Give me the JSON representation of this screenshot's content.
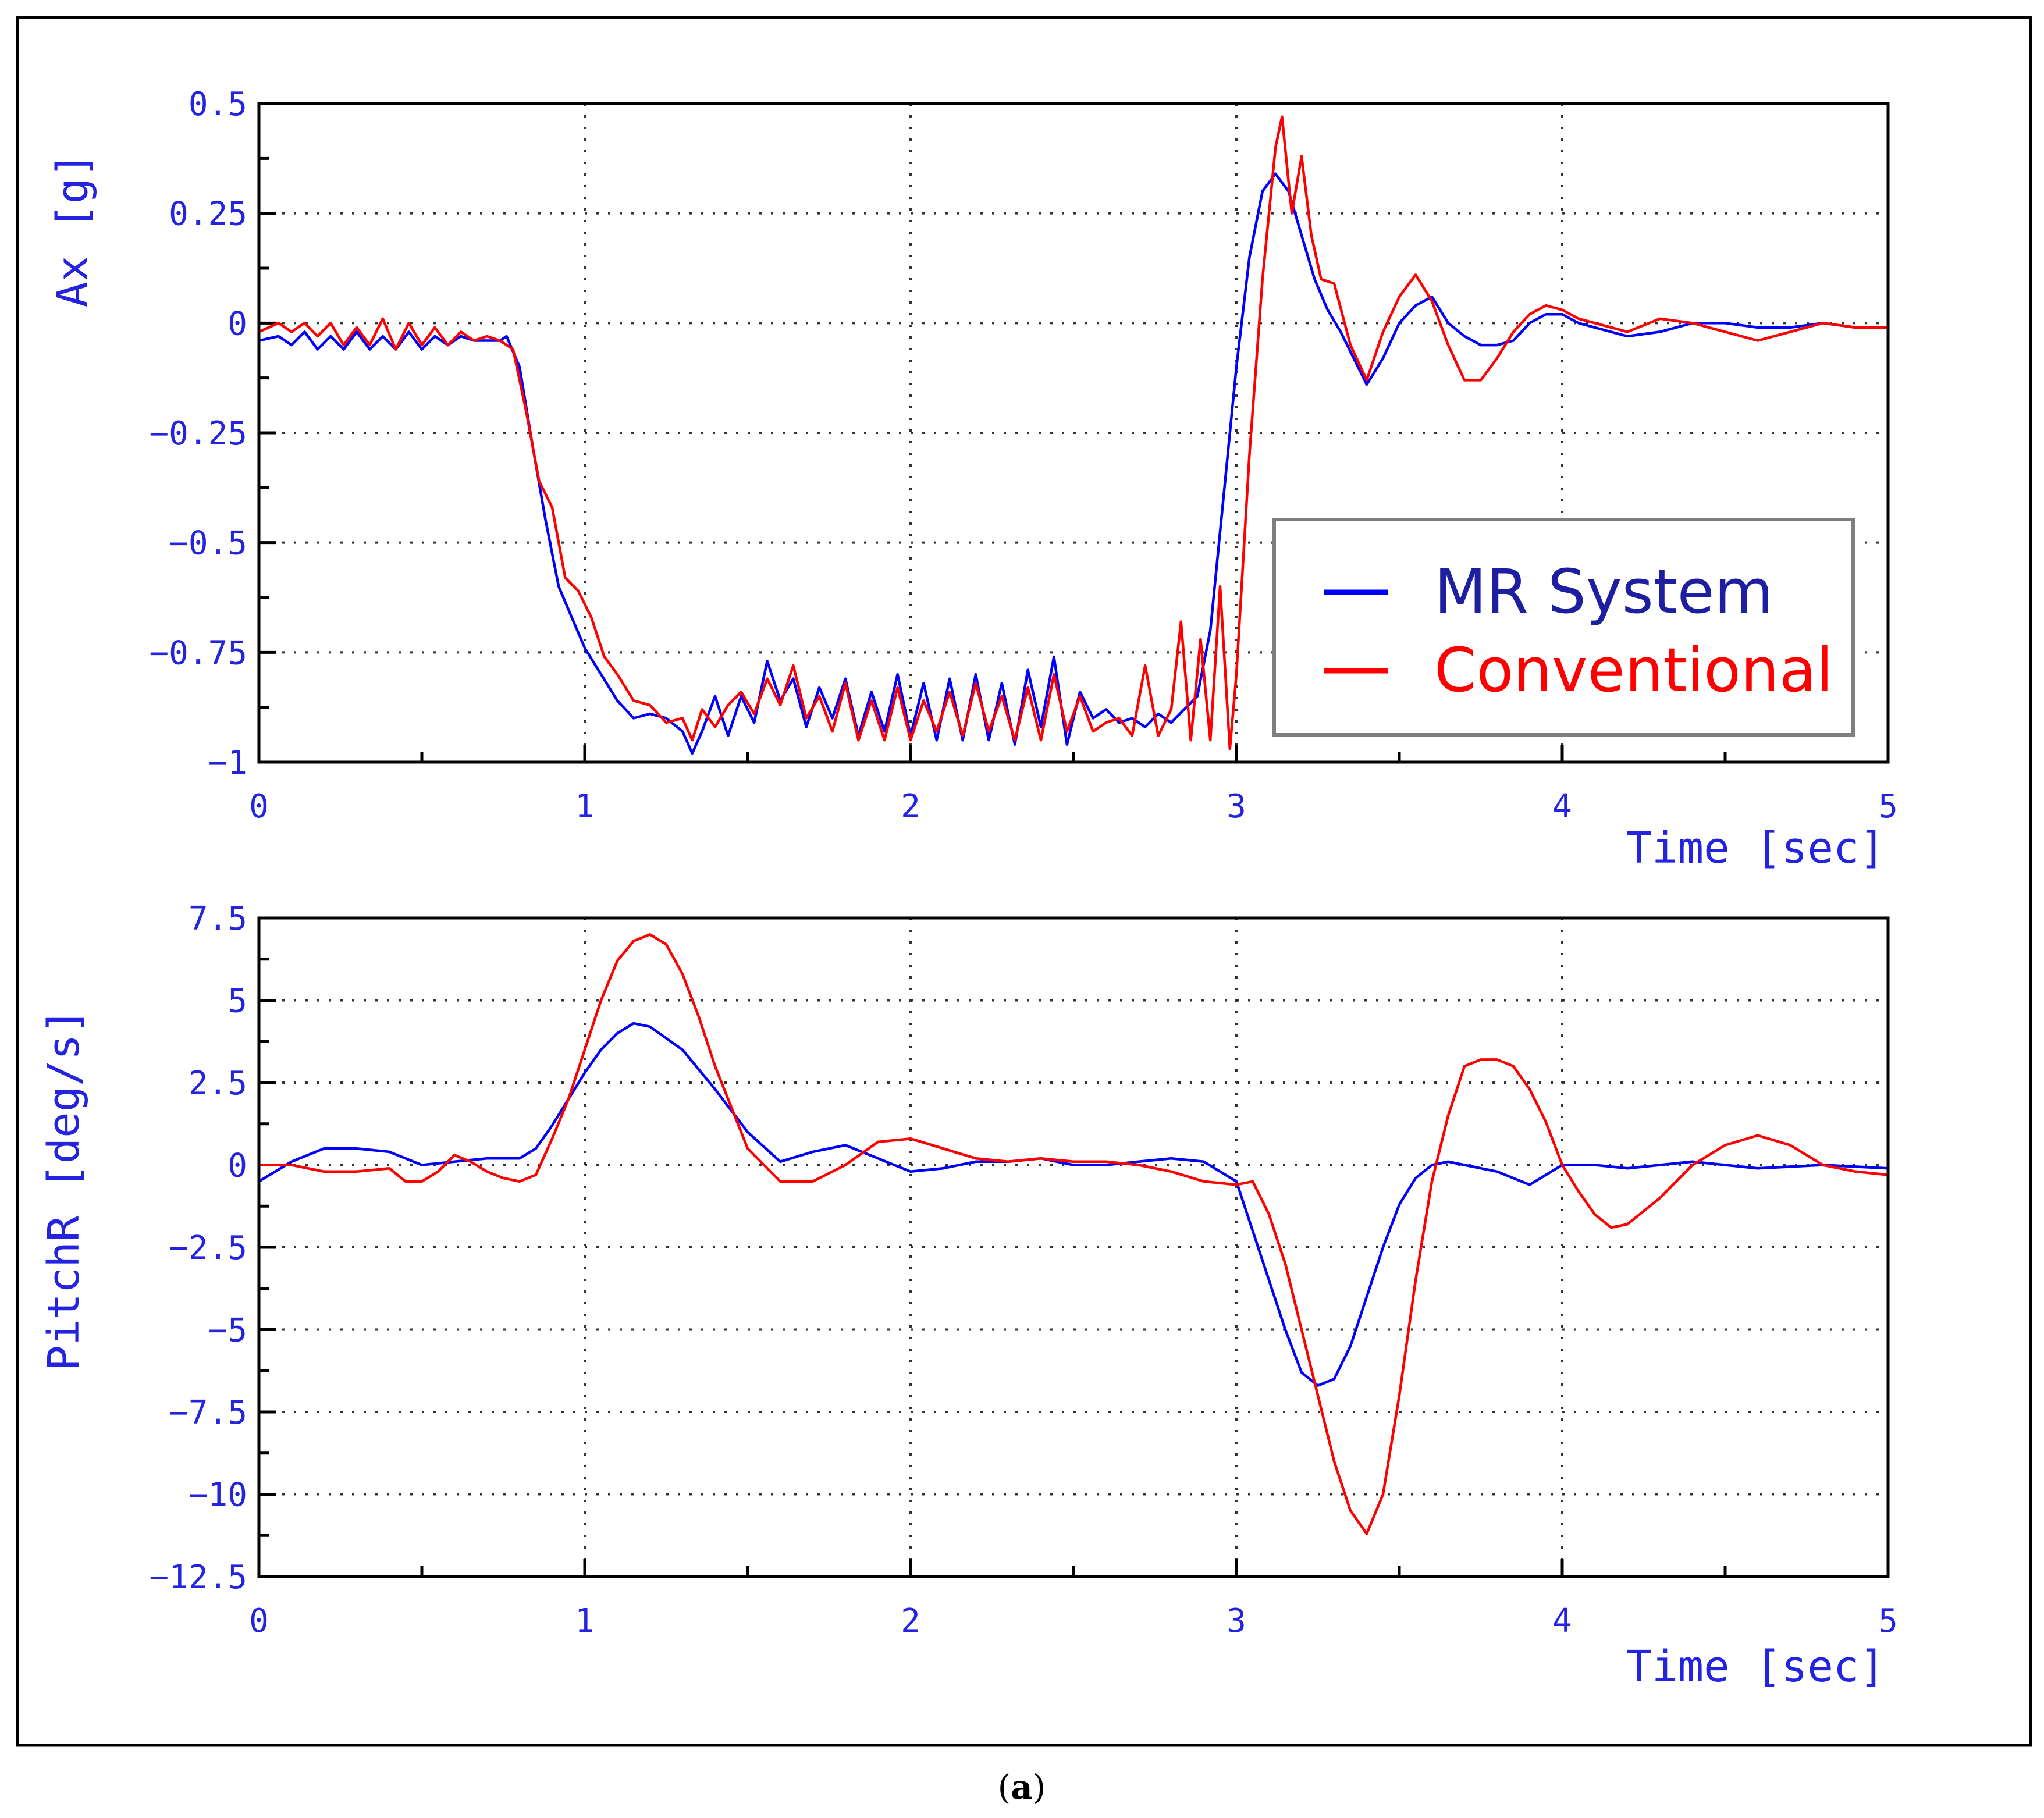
{
  "caption": {
    "open": "(",
    "letter": "a",
    "close": ")"
  },
  "legend": {
    "entries": [
      {
        "name": "MR System",
        "color": "#0000ff",
        "text_color": "#1e1ea0"
      },
      {
        "name": "Conventional",
        "color": "#ff0000",
        "text_color": "#ff0000"
      }
    ]
  },
  "chart_data": [
    {
      "type": "line",
      "xlabel": "Time [sec]",
      "ylabel": "Ax [g]",
      "xlim": [
        0,
        5
      ],
      "ylim": [
        -1,
        0.5
      ],
      "xticks": [
        "0",
        "1",
        "2",
        "3",
        "4",
        "5"
      ],
      "yticks": [
        "0.5",
        "0.25",
        "0",
        "-0.25",
        "-0.5",
        "-0.75",
        "-1"
      ],
      "grid": true,
      "legend_position": "right",
      "series": [
        {
          "name": "MR System",
          "color": "#0000ff",
          "x": [
            0,
            0.06,
            0.1,
            0.14,
            0.18,
            0.22,
            0.26,
            0.3,
            0.34,
            0.38,
            0.42,
            0.46,
            0.5,
            0.54,
            0.58,
            0.62,
            0.66,
            0.7,
            0.74,
            0.76,
            0.8,
            0.84,
            0.88,
            0.92,
            0.96,
            1.0,
            1.05,
            1.1,
            1.15,
            1.2,
            1.25,
            1.3,
            1.33,
            1.36,
            1.4,
            1.44,
            1.48,
            1.52,
            1.56,
            1.6,
            1.64,
            1.68,
            1.72,
            1.76,
            1.8,
            1.84,
            1.88,
            1.92,
            1.96,
            2.0,
            2.04,
            2.08,
            2.12,
            2.16,
            2.2,
            2.24,
            2.28,
            2.32,
            2.36,
            2.4,
            2.44,
            2.48,
            2.52,
            2.56,
            2.6,
            2.64,
            2.68,
            2.72,
            2.76,
            2.8,
            2.84,
            2.88,
            2.92,
            2.96,
            3.0,
            3.04,
            3.08,
            3.12,
            3.16,
            3.2,
            3.24,
            3.28,
            3.32,
            3.36,
            3.4,
            3.45,
            3.5,
            3.55,
            3.6,
            3.65,
            3.7,
            3.75,
            3.8,
            3.85,
            3.9,
            3.95,
            4.0,
            4.05,
            4.1,
            4.2,
            4.3,
            4.4,
            4.5,
            4.6,
            4.7,
            4.8,
            4.9,
            5.0
          ],
          "y": [
            -0.04,
            -0.03,
            -0.05,
            -0.02,
            -0.06,
            -0.03,
            -0.06,
            -0.02,
            -0.06,
            -0.03,
            -0.06,
            -0.02,
            -0.06,
            -0.03,
            -0.05,
            -0.03,
            -0.04,
            -0.04,
            -0.04,
            -0.03,
            -0.1,
            -0.28,
            -0.45,
            -0.6,
            -0.67,
            -0.74,
            -0.8,
            -0.86,
            -0.9,
            -0.89,
            -0.9,
            -0.93,
            -0.98,
            -0.93,
            -0.85,
            -0.94,
            -0.85,
            -0.91,
            -0.77,
            -0.86,
            -0.81,
            -0.92,
            -0.83,
            -0.9,
            -0.81,
            -0.94,
            -0.84,
            -0.93,
            -0.8,
            -0.94,
            -0.82,
            -0.95,
            -0.81,
            -0.95,
            -0.8,
            -0.95,
            -0.82,
            -0.96,
            -0.79,
            -0.92,
            -0.76,
            -0.96,
            -0.84,
            -0.9,
            -0.88,
            -0.91,
            -0.9,
            -0.92,
            -0.89,
            -0.91,
            -0.88,
            -0.85,
            -0.7,
            -0.4,
            -0.1,
            0.15,
            0.3,
            0.34,
            0.3,
            0.2,
            0.1,
            0.03,
            -0.02,
            -0.08,
            -0.14,
            -0.08,
            0.0,
            0.04,
            0.06,
            0.0,
            -0.03,
            -0.05,
            -0.05,
            -0.04,
            0.0,
            0.02,
            0.02,
            0.0,
            -0.01,
            -0.03,
            -0.02,
            0.0,
            0.0,
            -0.01,
            -0.01,
            0.0,
            -0.01,
            -0.01
          ]
        },
        {
          "name": "Conventional",
          "color": "#ff0000",
          "x": [
            0,
            0.06,
            0.1,
            0.14,
            0.18,
            0.22,
            0.26,
            0.3,
            0.34,
            0.38,
            0.42,
            0.46,
            0.5,
            0.54,
            0.58,
            0.62,
            0.66,
            0.7,
            0.74,
            0.78,
            0.82,
            0.86,
            0.9,
            0.94,
            0.98,
            1.02,
            1.06,
            1.1,
            1.15,
            1.2,
            1.25,
            1.3,
            1.33,
            1.36,
            1.4,
            1.44,
            1.48,
            1.52,
            1.56,
            1.6,
            1.64,
            1.68,
            1.72,
            1.76,
            1.8,
            1.84,
            1.88,
            1.92,
            1.96,
            2.0,
            2.04,
            2.08,
            2.12,
            2.16,
            2.2,
            2.24,
            2.28,
            2.32,
            2.36,
            2.4,
            2.44,
            2.48,
            2.52,
            2.56,
            2.6,
            2.64,
            2.68,
            2.72,
            2.76,
            2.8,
            2.83,
            2.86,
            2.89,
            2.92,
            2.95,
            2.98,
            3.0,
            3.04,
            3.08,
            3.12,
            3.14,
            3.17,
            3.2,
            3.23,
            3.26,
            3.3,
            3.35,
            3.4,
            3.45,
            3.5,
            3.55,
            3.6,
            3.65,
            3.7,
            3.75,
            3.8,
            3.85,
            3.9,
            3.95,
            4.0,
            4.05,
            4.1,
            4.2,
            4.3,
            4.4,
            4.5,
            4.6,
            4.7,
            4.8,
            4.9,
            5.0
          ],
          "y": [
            -0.02,
            0.0,
            -0.02,
            0.0,
            -0.03,
            0.0,
            -0.05,
            -0.01,
            -0.05,
            0.01,
            -0.06,
            0.0,
            -0.05,
            -0.01,
            -0.05,
            -0.02,
            -0.04,
            -0.03,
            -0.04,
            -0.06,
            -0.2,
            -0.36,
            -0.42,
            -0.58,
            -0.61,
            -0.67,
            -0.76,
            -0.8,
            -0.86,
            -0.87,
            -0.91,
            -0.9,
            -0.95,
            -0.88,
            -0.92,
            -0.87,
            -0.84,
            -0.89,
            -0.81,
            -0.87,
            -0.78,
            -0.9,
            -0.85,
            -0.93,
            -0.82,
            -0.95,
            -0.86,
            -0.95,
            -0.83,
            -0.95,
            -0.86,
            -0.93,
            -0.84,
            -0.94,
            -0.82,
            -0.93,
            -0.85,
            -0.95,
            -0.83,
            -0.95,
            -0.8,
            -0.93,
            -0.85,
            -0.93,
            -0.91,
            -0.9,
            -0.94,
            -0.78,
            -0.94,
            -0.88,
            -0.68,
            -0.95,
            -0.72,
            -0.95,
            -0.6,
            -0.97,
            -0.8,
            -0.3,
            0.1,
            0.4,
            0.47,
            0.25,
            0.38,
            0.2,
            0.1,
            0.09,
            -0.05,
            -0.13,
            -0.02,
            0.06,
            0.11,
            0.05,
            -0.05,
            -0.13,
            -0.13,
            -0.08,
            -0.02,
            0.02,
            0.04,
            0.03,
            0.01,
            0.0,
            -0.02,
            0.01,
            0.0,
            -0.02,
            -0.04,
            -0.02,
            0.0,
            -0.01,
            -0.01
          ]
        }
      ]
    },
    {
      "type": "line",
      "xlabel": "Time [sec]",
      "ylabel": "PitchR [deg/s]",
      "xlim": [
        0,
        5
      ],
      "ylim": [
        -12.5,
        7.5
      ],
      "xticks": [
        "0",
        "1",
        "2",
        "3",
        "4",
        "5"
      ],
      "yticks": [
        "7.5",
        "5",
        "2.5",
        "0",
        "-2.5",
        "-5",
        "-7.5",
        "-10",
        "-12.5"
      ],
      "grid": true,
      "series": [
        {
          "name": "MR System",
          "color": "#0000ff",
          "x": [
            0,
            0.1,
            0.2,
            0.3,
            0.4,
            0.5,
            0.6,
            0.7,
            0.8,
            0.85,
            0.9,
            0.95,
            1.0,
            1.05,
            1.1,
            1.15,
            1.2,
            1.3,
            1.4,
            1.5,
            1.6,
            1.7,
            1.8,
            1.9,
            2.0,
            2.1,
            2.2,
            2.3,
            2.4,
            2.5,
            2.6,
            2.7,
            2.8,
            2.9,
            3.0,
            3.05,
            3.1,
            3.15,
            3.2,
            3.25,
            3.3,
            3.35,
            3.4,
            3.45,
            3.5,
            3.55,
            3.6,
            3.65,
            3.7,
            3.8,
            3.9,
            4.0,
            4.1,
            4.2,
            4.3,
            4.4,
            4.5,
            4.6,
            4.8,
            5.0
          ],
          "y": [
            -0.5,
            0.1,
            0.5,
            0.5,
            0.4,
            0.0,
            0.1,
            0.2,
            0.2,
            0.5,
            1.2,
            2.0,
            2.8,
            3.5,
            4.0,
            4.3,
            4.2,
            3.5,
            2.3,
            1.0,
            0.1,
            0.4,
            0.6,
            0.2,
            -0.2,
            -0.1,
            0.1,
            0.1,
            0.2,
            0.0,
            0.0,
            0.1,
            0.2,
            0.1,
            -0.5,
            -2.0,
            -3.5,
            -5.0,
            -6.3,
            -6.7,
            -6.5,
            -5.5,
            -4.0,
            -2.5,
            -1.2,
            -0.4,
            0.0,
            0.1,
            0.0,
            -0.2,
            -0.6,
            0.0,
            0.0,
            -0.1,
            0.0,
            0.1,
            0.0,
            -0.1,
            0.0,
            -0.1
          ]
        },
        {
          "name": "Conventional",
          "color": "#ff0000",
          "x": [
            0,
            0.1,
            0.2,
            0.3,
            0.4,
            0.45,
            0.5,
            0.55,
            0.6,
            0.65,
            0.7,
            0.75,
            0.8,
            0.85,
            0.9,
            0.95,
            1.0,
            1.05,
            1.1,
            1.15,
            1.2,
            1.25,
            1.3,
            1.35,
            1.4,
            1.5,
            1.6,
            1.7,
            1.8,
            1.9,
            2.0,
            2.1,
            2.2,
            2.3,
            2.4,
            2.5,
            2.6,
            2.7,
            2.8,
            2.9,
            3.0,
            3.05,
            3.1,
            3.15,
            3.2,
            3.25,
            3.3,
            3.35,
            3.4,
            3.45,
            3.5,
            3.55,
            3.6,
            3.65,
            3.7,
            3.75,
            3.8,
            3.85,
            3.9,
            3.95,
            4.0,
            4.05,
            4.1,
            4.15,
            4.2,
            4.3,
            4.4,
            4.5,
            4.6,
            4.7,
            4.8,
            4.9,
            5.0
          ],
          "y": [
            0.0,
            0.0,
            -0.2,
            -0.2,
            -0.1,
            -0.5,
            -0.5,
            -0.2,
            0.3,
            0.1,
            -0.2,
            -0.4,
            -0.5,
            -0.3,
            0.8,
            2.0,
            3.5,
            5.0,
            6.2,
            6.8,
            7.0,
            6.7,
            5.8,
            4.5,
            3.0,
            0.5,
            -0.5,
            -0.5,
            0.0,
            0.7,
            0.8,
            0.5,
            0.2,
            0.1,
            0.2,
            0.1,
            0.1,
            0.0,
            -0.2,
            -0.5,
            -0.6,
            -0.5,
            -1.5,
            -3.0,
            -5.0,
            -7.0,
            -9.0,
            -10.5,
            -11.2,
            -10.0,
            -7.0,
            -3.5,
            -0.5,
            1.5,
            3.0,
            3.2,
            3.2,
            3.0,
            2.3,
            1.3,
            0.0,
            -0.8,
            -1.5,
            -1.9,
            -1.8,
            -1.0,
            0.0,
            0.6,
            0.9,
            0.6,
            0.0,
            -0.2,
            -0.3
          ]
        }
      ]
    }
  ]
}
